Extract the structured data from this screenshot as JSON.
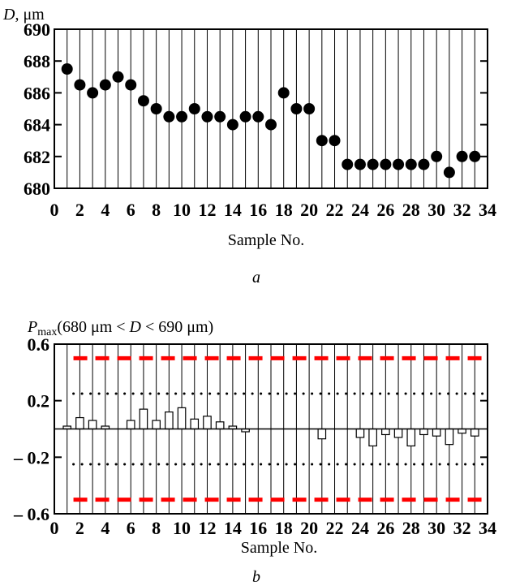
{
  "chart_data": [
    {
      "type": "scatter",
      "ylabel_var": "D",
      "ylabel_unit": ", μm",
      "xlabel": "Sample No.",
      "caption": "a",
      "xlim": [
        0,
        34
      ],
      "ylim": [
        680,
        690
      ],
      "x_ticks": [
        "0",
        "2",
        "4",
        "6",
        "8",
        "10",
        "12",
        "14",
        "16",
        "18",
        "20",
        "22",
        "24",
        "26",
        "28",
        "30",
        "32",
        "34"
      ],
      "y_ticks": [
        "680",
        "682",
        "684",
        "686",
        "688",
        "690"
      ],
      "x": [
        1,
        2,
        3,
        4,
        5,
        6,
        7,
        8,
        9,
        10,
        11,
        12,
        13,
        14,
        15,
        16,
        17,
        18,
        19,
        20,
        21,
        22,
        23,
        24,
        25,
        26,
        27,
        28,
        29,
        30,
        31,
        32,
        33
      ],
      "values": [
        687.5,
        686.5,
        686,
        686.5,
        687,
        686.5,
        685.5,
        685,
        684.5,
        684.5,
        685,
        684.5,
        684.5,
        684,
        684.5,
        684.5,
        684,
        686,
        685,
        685,
        683,
        683,
        681.5,
        681.5,
        681.5,
        681.5,
        681.5,
        681.5,
        681.5,
        682,
        681,
        682,
        682
      ],
      "grid": "vertical lines at every integer sample"
    },
    {
      "type": "bar",
      "ylabel_var": "P",
      "ylabel_sub": "max",
      "ylabel_rest": "(680 μm < ",
      "ylabel_var2": "D",
      "ylabel_end": " < 690 μm)",
      "xlabel": "Sample No.",
      "caption": "b",
      "xlim": [
        0,
        34
      ],
      "ylim": [
        -0.6,
        0.6
      ],
      "x_ticks": [
        "0",
        "2",
        "4",
        "6",
        "8",
        "10",
        "12",
        "14",
        "16",
        "18",
        "20",
        "22",
        "24",
        "26",
        "28",
        "30",
        "32",
        "34"
      ],
      "y_ticks": [
        "0.6",
        "0.2",
        "– 0.2",
        "– 0.6"
      ],
      "x": [
        1,
        2,
        3,
        4,
        5,
        6,
        7,
        8,
        9,
        10,
        11,
        12,
        13,
        14,
        15,
        16,
        17,
        18,
        19,
        20,
        21,
        22,
        23,
        24,
        25,
        26,
        27,
        28,
        29,
        30,
        31,
        32,
        33
      ],
      "values": [
        0.02,
        0.08,
        0.06,
        0.02,
        0,
        0.06,
        0.14,
        0.06,
        0.12,
        0.15,
        0.07,
        0.09,
        0.05,
        0.02,
        -0.02,
        0,
        0,
        0,
        0,
        0,
        -0.07,
        0,
        0,
        -0.06,
        -0.12,
        -0.04,
        -0.06,
        -0.12,
        -0.04,
        -0.05,
        -0.11,
        -0.03,
        -0.05
      ],
      "ref_lines": [
        {
          "y": 0.5,
          "style": "dashed",
          "color": "#ff0000"
        },
        {
          "y": -0.5,
          "style": "dashed",
          "color": "#ff0000"
        },
        {
          "y": 0.25,
          "style": "dotted",
          "color": "#000000"
        },
        {
          "y": -0.25,
          "style": "dotted",
          "color": "#000000"
        }
      ],
      "grid": "vertical lines at every integer sample"
    }
  ]
}
